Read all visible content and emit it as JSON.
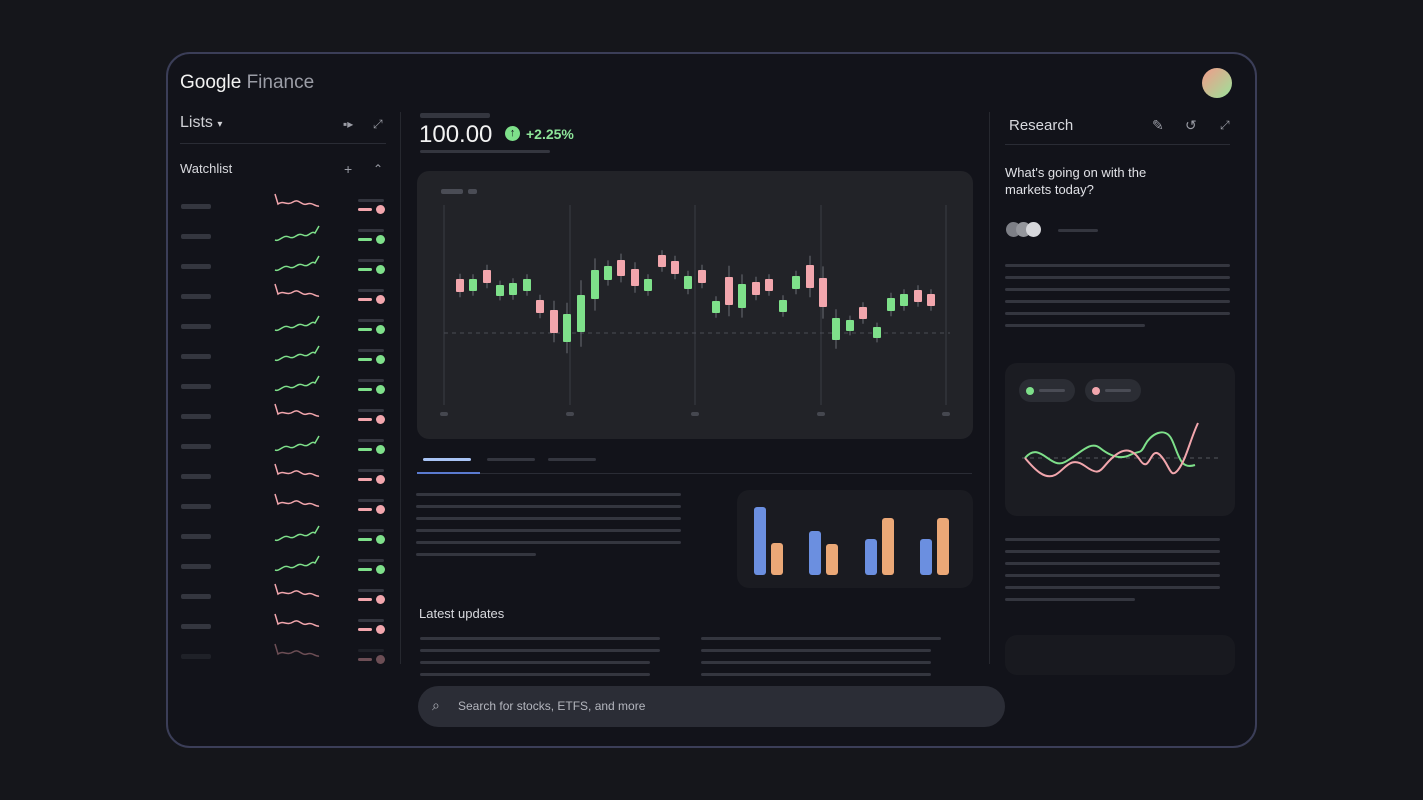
{
  "app": {
    "logo_google": "Google",
    "logo_finance": "Finance"
  },
  "lists": {
    "title": "Lists",
    "watchlist_label": "Watchlist",
    "rows": [
      "down",
      "up",
      "up",
      "down",
      "up",
      "up",
      "up",
      "down",
      "up",
      "down",
      "down",
      "up",
      "up",
      "down",
      "down",
      "down"
    ]
  },
  "quote": {
    "price": "100.00",
    "change": "+2.25%"
  },
  "main": {
    "latest_updates": "Latest updates"
  },
  "search": {
    "placeholder": "Search for stocks, ETFS, and more"
  },
  "research": {
    "title": "Research",
    "prompt": "What's going on with the markets today?"
  },
  "colors": {
    "up": "#7ee08a",
    "down": "#f2a6ad",
    "blue": "#6b8fe0",
    "orange": "#eba877",
    "frame": "#3b3e58"
  }
}
